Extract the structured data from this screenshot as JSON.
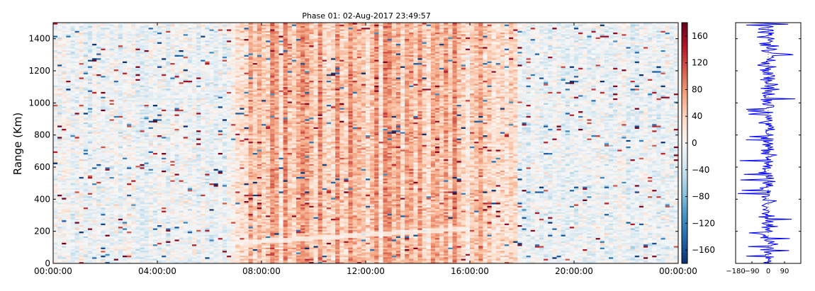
{
  "chart_data": [
    {
      "type": "heatmap",
      "title": "Phase 01: 02-Aug-2017 23:49:57",
      "ylabel": "Range (Km)",
      "xlabel": "",
      "x_range_hours": [
        0,
        24
      ],
      "x_ticks": [
        {
          "hour": 0,
          "label": "00:00:00"
        },
        {
          "hour": 4,
          "label": "04:00:00"
        },
        {
          "hour": 8,
          "label": "08:00:00"
        },
        {
          "hour": 12,
          "label": "12:00:00"
        },
        {
          "hour": 16,
          "label": "16:00:00"
        },
        {
          "hour": 20,
          "label": "20:00:00"
        },
        {
          "hour": 24,
          "label": "00:00:00"
        }
      ],
      "ylim": [
        0,
        1500
      ],
      "y_ticks": [
        0,
        200,
        400,
        600,
        800,
        1000,
        1200,
        1400
      ],
      "colorscale": {
        "name": "RdBu_r",
        "range": [
          -180,
          180
        ],
        "ticks": [
          -160,
          -120,
          -80,
          -40,
          0,
          40,
          80,
          120,
          160
        ],
        "stops": [
          "#08306b",
          "#2166ac",
          "#4393c3",
          "#92c5de",
          "#d1e5f0",
          "#f7f7f7",
          "#fddbc7",
          "#f4a582",
          "#d6604d",
          "#b2182b",
          "#67001f"
        ]
      },
      "grid": {
        "time_step_minutes": 10,
        "range_step_km": 10
      },
      "pattern_description_values": {
        "day_band_hours": [
          7,
          17.5
        ],
        "day_mean_phase": 55,
        "night_mean_phase": -8,
        "scatter_phase_abs": 180
      }
    },
    {
      "type": "line",
      "title": "",
      "xlabel": "",
      "ylabel": "",
      "xlim": [
        -180,
        180
      ],
      "x_ticks": [
        {
          "value": -180,
          "label": "−180"
        },
        {
          "value": -90,
          "label": "−90"
        },
        {
          "value": 0,
          "label": "0"
        },
        {
          "value": 90,
          "label": "90"
        }
      ],
      "ylim": [
        0,
        1500
      ],
      "color": "#0000ff",
      "series_description_values": {
        "mean_phase": 0,
        "spread_phase": 60,
        "outlier_phase": 170
      }
    }
  ]
}
